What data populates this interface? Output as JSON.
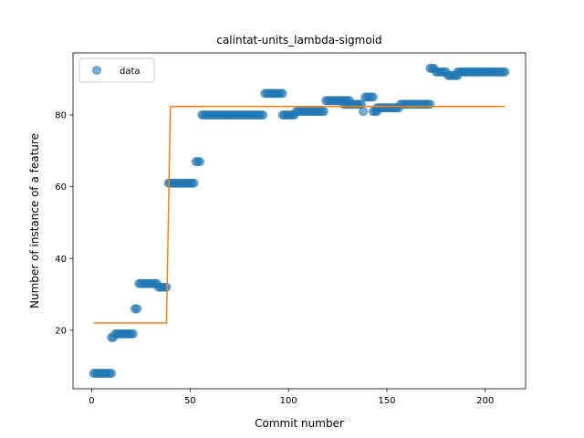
{
  "chart_data": {
    "type": "scatter",
    "title": "calintat-units_lambda-sigmoid",
    "xlabel": "Commit number",
    "ylabel": "Number of instance of a feature",
    "xlim": [
      -9.5,
      220.5
    ],
    "ylim": [
      3.7,
      97.3
    ],
    "xticks": [
      0,
      50,
      100,
      150,
      200
    ],
    "yticks": [
      20,
      40,
      60,
      80
    ],
    "grid": false,
    "legend": {
      "placement": "top-left",
      "entries": [
        "data"
      ]
    },
    "colors": {
      "data": "#1f77b4",
      "fit": "#ff7f0e"
    },
    "series": [
      {
        "name": "data",
        "kind": "scatter",
        "runs": [
          {
            "from": 1,
            "to": 10,
            "y": 8
          },
          {
            "from": 10,
            "to": 11,
            "y": 18
          },
          {
            "from": 12,
            "to": 21,
            "y": 19
          },
          {
            "from": 22,
            "to": 23,
            "y": 26
          },
          {
            "from": 24,
            "to": 33,
            "y": 33
          },
          {
            "from": 34,
            "to": 38,
            "y": 32
          },
          {
            "from": 39,
            "to": 52,
            "y": 61
          },
          {
            "from": 53,
            "to": 55,
            "y": 67
          },
          {
            "from": 56,
            "to": 87,
            "y": 80
          },
          {
            "from": 88,
            "to": 97,
            "y": 86
          },
          {
            "from": 97,
            "to": 103,
            "y": 80
          },
          {
            "from": 104,
            "to": 118,
            "y": 81
          },
          {
            "from": 119,
            "to": 131,
            "y": 84
          },
          {
            "from": 128,
            "to": 137,
            "y": 83
          },
          {
            "from": 138,
            "to": 138,
            "y": 81
          },
          {
            "from": 139,
            "to": 143,
            "y": 85
          },
          {
            "from": 143,
            "to": 145,
            "y": 81
          },
          {
            "from": 145,
            "to": 156,
            "y": 82
          },
          {
            "from": 157,
            "to": 172,
            "y": 83
          },
          {
            "from": 172,
            "to": 174,
            "y": 93
          },
          {
            "from": 175,
            "to": 180,
            "y": 92
          },
          {
            "from": 181,
            "to": 186,
            "y": 91
          },
          {
            "from": 186,
            "to": 210,
            "y": 92
          }
        ]
      },
      {
        "name": "",
        "kind": "line",
        "x": [
          1,
          38,
          40,
          210
        ],
        "y": [
          22,
          22,
          82.4,
          82.4
        ]
      }
    ]
  }
}
